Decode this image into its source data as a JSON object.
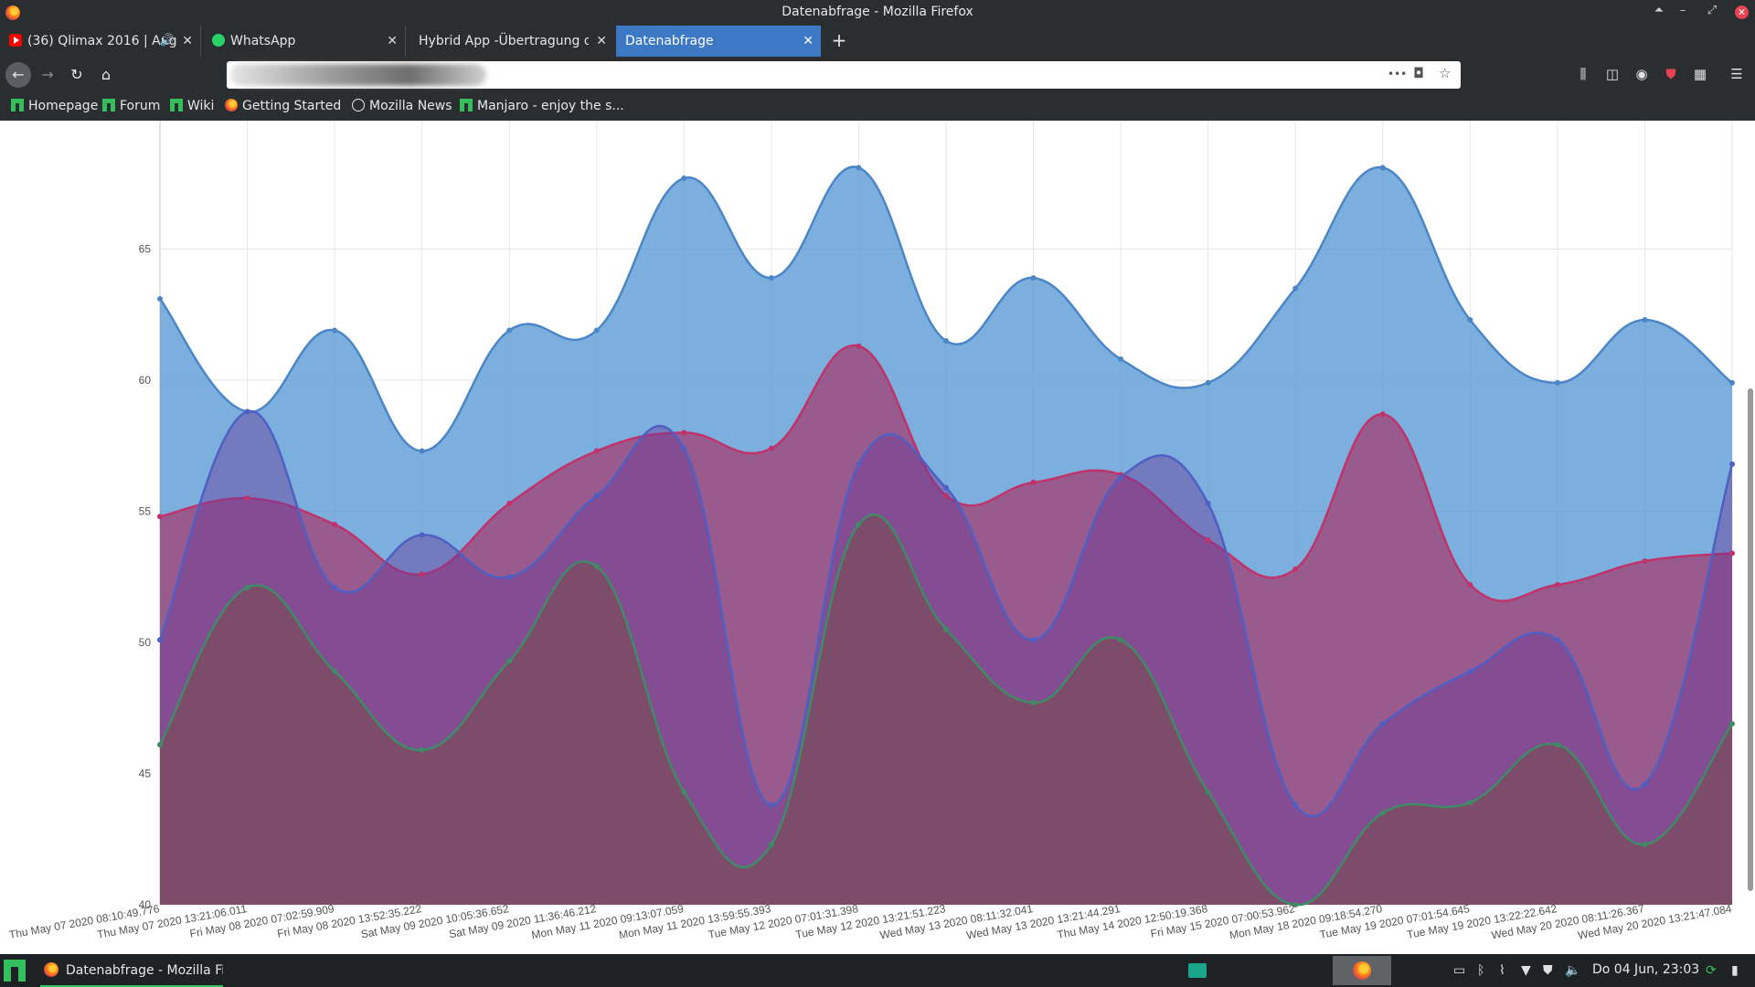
{
  "window": {
    "title": "Datenabfrage - Mozilla Firefox",
    "controls": {
      "up": "⏶",
      "minimize": "–",
      "maximize": "⤢",
      "close": "✕"
    }
  },
  "tabs": [
    {
      "label": "(36) Qlimax 2016 | Ang",
      "icon": "youtube-icon",
      "has_audio": true
    },
    {
      "label": "WhatsApp",
      "icon": "whatsapp-icon"
    },
    {
      "label": "Hybrid App -Übertragung der",
      "icon": "none"
    },
    {
      "label": "Datenabfrage",
      "icon": "none",
      "active": true
    }
  ],
  "newtab_label": "+",
  "nav": {
    "back": "←",
    "forward": "→",
    "reload": "↻",
    "home": "⌂",
    "url_more": "•••",
    "pocket": "◘",
    "bookmark_star": "☆"
  },
  "toolbar_icons": {
    "library": "⫼",
    "sidebar": "◫",
    "account": "◉",
    "shield": "⛊",
    "extension": "▦",
    "menu": "☰"
  },
  "bookmarks": [
    {
      "label": "Homepage",
      "icon": "manjaro-icon"
    },
    {
      "label": "Forum",
      "icon": "manjaro-icon"
    },
    {
      "label": "Wiki",
      "icon": "manjaro-icon"
    },
    {
      "label": "Getting Started",
      "icon": "firefox-icon"
    },
    {
      "label": "Mozilla News",
      "icon": "globe-icon"
    },
    {
      "label": "Manjaro - enjoy the s...",
      "icon": "manjaro-icon"
    }
  ],
  "colors": {
    "series1_fill": "#5b9bd5",
    "series1_line": "#4a86c8",
    "series2_fill": "#a53a6f",
    "series2_line": "#c0336a",
    "series3_fill": "#7b4c5c",
    "series3_line": "#3e8c66",
    "grid": "#e6e6e6"
  },
  "chart_data": {
    "type": "area",
    "ylim": [
      40,
      70
    ],
    "yticks": [
      40,
      45,
      50,
      55,
      60,
      65
    ],
    "categories": [
      "Thu May 07 2020 08:10:49.776",
      "Thu May 07 2020 13:21:06.011",
      "Fri May 08 2020 07:02:59.909",
      "Fri May 08 2020 13:52:35.222",
      "Sat May 09 2020 10:05:36.652",
      "Sat May 09 2020 11:36:46.212",
      "Mon May 11 2020 09:13:07.059",
      "Mon May 11 2020 13:59:55.393",
      "Tue May 12 2020 07:01:31.398",
      "Tue May 12 2020 13:21:51.223",
      "Wed May 13 2020 08:11:32.041",
      "Wed May 13 2020 13:21:44.291",
      "Thu May 14 2020 12:50:19.368",
      "Fri May 15 2020 07:00:53.962",
      "Mon May 18 2020 09:18:54.270",
      "Tue May 19 2020 07:01:54.645",
      "Tue May 19 2020 13:22:22.642",
      "Wed May 20 2020 08:11:26.367",
      "Wed May 20 2020 13:21:47.084"
    ],
    "series": [
      {
        "values": [
          63.1,
          58.8,
          61.9,
          57.3,
          61.9,
          61.9,
          67.7,
          63.9,
          68.1,
          61.5,
          63.9,
          60.8,
          59.9,
          63.5,
          68.1,
          62.3,
          59.9,
          62.3,
          59.9
        ]
      },
      {
        "values": [
          54.8,
          55.5,
          54.5,
          52.6,
          55.3,
          57.3,
          58.0,
          57.4,
          61.3,
          55.6,
          56.1,
          56.4,
          53.9,
          52.8,
          58.7,
          52.2,
          52.2,
          53.1,
          53.4
        ]
      },
      {
        "values": [
          50.1,
          58.8,
          52.1,
          54.1,
          52.5,
          55.6,
          57.4,
          43.8,
          56.8,
          55.9,
          50.1,
          56.3,
          55.3,
          43.8,
          46.9,
          48.9,
          50.1,
          44.6,
          56.8
        ]
      },
      {
        "values": [
          46.1,
          52.1,
          48.9,
          45.9,
          49.3,
          52.9,
          44.3,
          42.3,
          54.5,
          50.5,
          47.7,
          50.1,
          44.3,
          40.0,
          43.5,
          43.9,
          46.1,
          42.3,
          46.9
        ]
      }
    ],
    "grid": true,
    "legend": "none"
  },
  "taskbar": {
    "task_label": "Datenabfrage - Mozilla Fir...",
    "clock": "Do 04 Jun, 23:03",
    "tray_icons": {
      "window": "▭",
      "bluetooth": "ᛒ",
      "clip": "⌇",
      "wifi": "▼",
      "shield": "⛊",
      "volume": "🔈",
      "update": "⟳",
      "battery": "▮"
    }
  }
}
